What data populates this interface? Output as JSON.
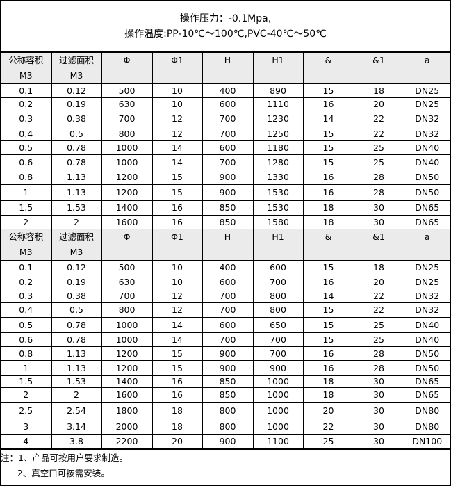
{
  "title": {
    "line1": "操作压力：-0.1Mpa,",
    "line2": "操作温度:PP-10℃～100℃,PVC-40℃～50℃"
  },
  "columns": [
    [
      "公称容积",
      "M3"
    ],
    [
      "过滤面积",
      "M3"
    ],
    [
      "Φ",
      ""
    ],
    [
      "Φ1",
      ""
    ],
    [
      "H",
      ""
    ],
    [
      "H1",
      ""
    ],
    [
      "&",
      ""
    ],
    [
      "&1",
      ""
    ],
    [
      "a",
      ""
    ]
  ],
  "table1": [
    [
      "0.1",
      "0.12",
      "500",
      "10",
      "400",
      "890",
      "15",
      "18",
      "DN25"
    ],
    [
      "0.2",
      "0.19",
      "630",
      "10",
      "600",
      "1110",
      "16",
      "20",
      "DN25"
    ],
    [
      "0.3",
      "0.38",
      "700",
      "12",
      "700",
      "1230",
      "14",
      "22",
      "DN32"
    ],
    [
      "0.4",
      "0.5",
      "800",
      "12",
      "700",
      "1250",
      "15",
      "22",
      "DN32"
    ],
    [
      "0.5",
      "0.78",
      "1000",
      "14",
      "600",
      "1180",
      "15",
      "25",
      "DN40"
    ],
    [
      "0.6",
      "0.78",
      "1000",
      "14",
      "700",
      "1280",
      "15",
      "25",
      "DN40"
    ],
    [
      "0.8",
      "1.13",
      "1200",
      "15",
      "900",
      "1330",
      "16",
      "28",
      "DN50"
    ],
    [
      "1",
      "1.13",
      "1200",
      "15",
      "900",
      "1530",
      "16",
      "28",
      "DN50"
    ],
    [
      "1.5",
      "1.53",
      "1400",
      "16",
      "850",
      "1530",
      "18",
      "30",
      "DN65"
    ],
    [
      "2",
      "2",
      "1600",
      "16",
      "850",
      "1580",
      "18",
      "30",
      "DN65"
    ]
  ],
  "table2": [
    [
      "0.1",
      "0.12",
      "500",
      "10",
      "400",
      "600",
      "15",
      "18",
      "DN25"
    ],
    [
      "0.2",
      "0.19",
      "630",
      "10",
      "600",
      "700",
      "16",
      "20",
      "DN25"
    ],
    [
      "0.3",
      "0.38",
      "700",
      "12",
      "700",
      "800",
      "14",
      "22",
      "DN32"
    ],
    [
      "0.4",
      "0.5",
      "800",
      "12",
      "700",
      "800",
      "15",
      "22",
      "DN32"
    ],
    [
      "0.5",
      "0.78",
      "1000",
      "14",
      "600",
      "650",
      "15",
      "25",
      "DN40"
    ],
    [
      "0.6",
      "0.78",
      "1000",
      "14",
      "700",
      "700",
      "15",
      "25",
      "DN40"
    ],
    [
      "0.8",
      "1.13",
      "1200",
      "15",
      "900",
      "700",
      "16",
      "28",
      "DN50"
    ],
    [
      "1",
      "1.13",
      "1200",
      "15",
      "900",
      "900",
      "16",
      "28",
      "DN50"
    ],
    [
      "1.5",
      "1.53",
      "1400",
      "16",
      "850",
      "1000",
      "18",
      "30",
      "DN65"
    ],
    [
      "2",
      "2",
      "1600",
      "16",
      "850",
      "1000",
      "18",
      "30",
      "DN65"
    ],
    [
      "2.5",
      "2.54",
      "1800",
      "18",
      "800",
      "1000",
      "20",
      "30",
      "DN80"
    ],
    [
      "3",
      "3.14",
      "2000",
      "18",
      "800",
      "1000",
      "22",
      "30",
      "DN80"
    ],
    [
      "4",
      "3.8",
      "2200",
      "20",
      "900",
      "1100",
      "25",
      "30",
      "DN100"
    ]
  ],
  "notes": [
    "注：1、产品可按用户要求制造。",
    "      2、真空口可按需安装。"
  ]
}
